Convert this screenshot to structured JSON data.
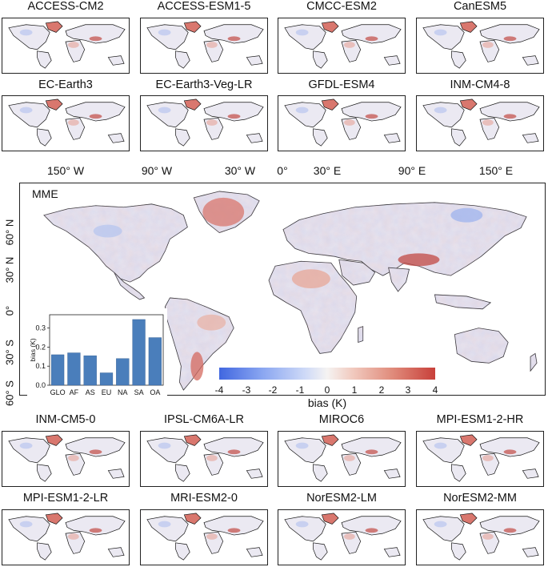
{
  "top_models": [
    "ACCESS-CM2",
    "ACCESS-ESM1-5",
    "CMCC-ESM2",
    "CanESM5",
    "EC-Earth3",
    "EC-Earth3-Veg-LR",
    "GFDL-ESM4",
    "INM-CM4-8"
  ],
  "bottom_models": [
    "INM-CM5-0",
    "IPSL-CM6A-LR",
    "MIROC6",
    "MPI-ESM1-2-HR",
    "MPI-ESM1-2-LR",
    "MRI-ESM2-0",
    "NorESM2-LM",
    "NorESM2-MM"
  ],
  "main_map": {
    "title": "MME",
    "lon_labels": [
      "150° W",
      "90° W",
      "30° W",
      "0°",
      "30° E",
      "90° E",
      "150° E"
    ],
    "lat_labels": [
      "60° N",
      "30° N",
      "0°",
      "30° S",
      "60° S"
    ]
  },
  "colorbar": {
    "label": "bias (K)",
    "ticks": [
      "-4",
      "-3",
      "-2",
      "-1",
      "0",
      "1",
      "2",
      "3",
      "4"
    ],
    "low_color": "#4167e0",
    "high_color": "#c8403a"
  },
  "chart_data": {
    "type": "bar",
    "categories": [
      "GLO",
      "AF",
      "AS",
      "EU",
      "NA",
      "SA",
      "OA"
    ],
    "values": [
      0.16,
      0.17,
      0.155,
      0.065,
      0.14,
      0.345,
      0.25
    ],
    "ylabel": "bias (K)",
    "ylim": [
      0,
      0.37
    ],
    "yticks": [
      "0.0",
      "0.1",
      "0.2",
      "0.3"
    ],
    "bar_color": "#4a7ebb"
  }
}
